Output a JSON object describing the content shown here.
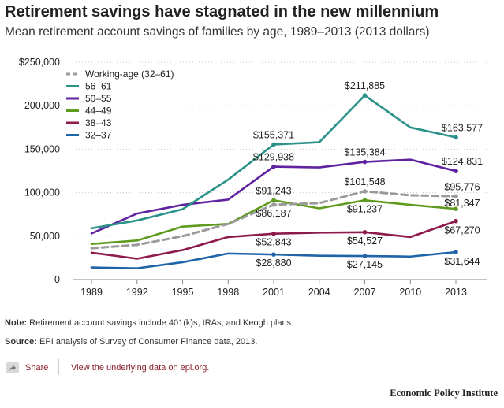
{
  "title": "Retirement savings have stagnated in the new millennium",
  "subtitle": "Mean retirement account savings of families by age, 1989–2013 (2013 dollars)",
  "chart_data": {
    "type": "line",
    "x": [
      1989,
      1992,
      1995,
      1998,
      2001,
      2004,
      2007,
      2010,
      2013
    ],
    "ylim": [
      0,
      250000
    ],
    "yticks": [
      0,
      50000,
      100000,
      150000,
      200000,
      250000
    ],
    "ytick_labels": [
      "0",
      "50,000",
      "100,000",
      "150,000",
      "200,000",
      "$250,000"
    ],
    "xtick_labels": [
      "1989",
      "1992",
      "1995",
      "1998",
      "2001",
      "2004",
      "2007",
      "2010",
      "2013"
    ],
    "grid": "horizontal dotted",
    "legend_position": "top-left",
    "series": [
      {
        "name": "Working-age (32–61)",
        "color": "#9b9b9b",
        "dashed": true,
        "values": [
          36000,
          40000,
          50000,
          64000,
          86187,
          88000,
          101548,
          97000,
          95776
        ]
      },
      {
        "name": "56–61",
        "color": "#2a9288",
        "dashed": false,
        "values": [
          59000,
          68000,
          81000,
          115000,
          155371,
          158000,
          211885,
          175000,
          163577
        ]
      },
      {
        "name": "50–55",
        "color": "#5f22a0",
        "dashed": false,
        "values": [
          53000,
          76000,
          86000,
          92000,
          129938,
          129000,
          135384,
          138000,
          124831
        ]
      },
      {
        "name": "44–49",
        "color": "#5e9a1e",
        "dashed": false,
        "values": [
          41000,
          45000,
          61000,
          64000,
          91243,
          82000,
          91237,
          86000,
          81347
        ]
      },
      {
        "name": "38–43",
        "color": "#8c1a4a",
        "dashed": false,
        "values": [
          31000,
          24000,
          34000,
          49000,
          52843,
          54000,
          54527,
          49000,
          67270
        ]
      },
      {
        "name": "32–37",
        "color": "#1f63a8",
        "dashed": false,
        "values": [
          14000,
          13000,
          20000,
          30000,
          28880,
          27500,
          27145,
          26500,
          31644
        ]
      }
    ],
    "annotations": [
      {
        "text": "$155,371",
        "x": 2001,
        "y": 155371,
        "pos": "above"
      },
      {
        "text": "$211,885",
        "x": 2007,
        "y": 211885,
        "pos": "above"
      },
      {
        "text": "$163,577",
        "x": 2013,
        "y": 163577,
        "pos": "above-right"
      },
      {
        "text": "$129,938",
        "x": 2001,
        "y": 129938,
        "pos": "above"
      },
      {
        "text": "$135,384",
        "x": 2007,
        "y": 135384,
        "pos": "above"
      },
      {
        "text": "$124,831",
        "x": 2013,
        "y": 124831,
        "pos": "above-right"
      },
      {
        "text": "$91,243",
        "x": 2001,
        "y": 91243,
        "pos": "above"
      },
      {
        "text": "$101,548",
        "x": 2007,
        "y": 101548,
        "pos": "above"
      },
      {
        "text": "$95,776",
        "x": 2013,
        "y": 95776,
        "pos": "above-right"
      },
      {
        "text": "$86,187",
        "x": 2001,
        "y": 86187,
        "pos": "below"
      },
      {
        "text": "$91,237",
        "x": 2007,
        "y": 91237,
        "pos": "below"
      },
      {
        "text": "$81,347",
        "x": 2013,
        "y": 81347,
        "pos": "above-right-low"
      },
      {
        "text": "$52,843",
        "x": 2001,
        "y": 52843,
        "pos": "below"
      },
      {
        "text": "$54,527",
        "x": 2007,
        "y": 54527,
        "pos": "below"
      },
      {
        "text": "$67,270",
        "x": 2013,
        "y": 67270,
        "pos": "below-right"
      },
      {
        "text": "$28,880",
        "x": 2001,
        "y": 28880,
        "pos": "below"
      },
      {
        "text": "$27,145",
        "x": 2007,
        "y": 27145,
        "pos": "below"
      },
      {
        "text": "$31,644",
        "x": 2013,
        "y": 31644,
        "pos": "below-right"
      }
    ]
  },
  "notes": {
    "note_label": "Note:",
    "note_text": " Retirement account savings include 401(k)s, IRAs, and Keogh plans.",
    "source_label": "Source:",
    "source_text": " EPI analysis of  Survey of Consumer Finance data, 2013."
  },
  "footer": {
    "share_icon": "share-arrow-icon",
    "share_label": "Share",
    "data_link": "View the underlying data on epi.org."
  },
  "brand": "Economic Policy Institute"
}
